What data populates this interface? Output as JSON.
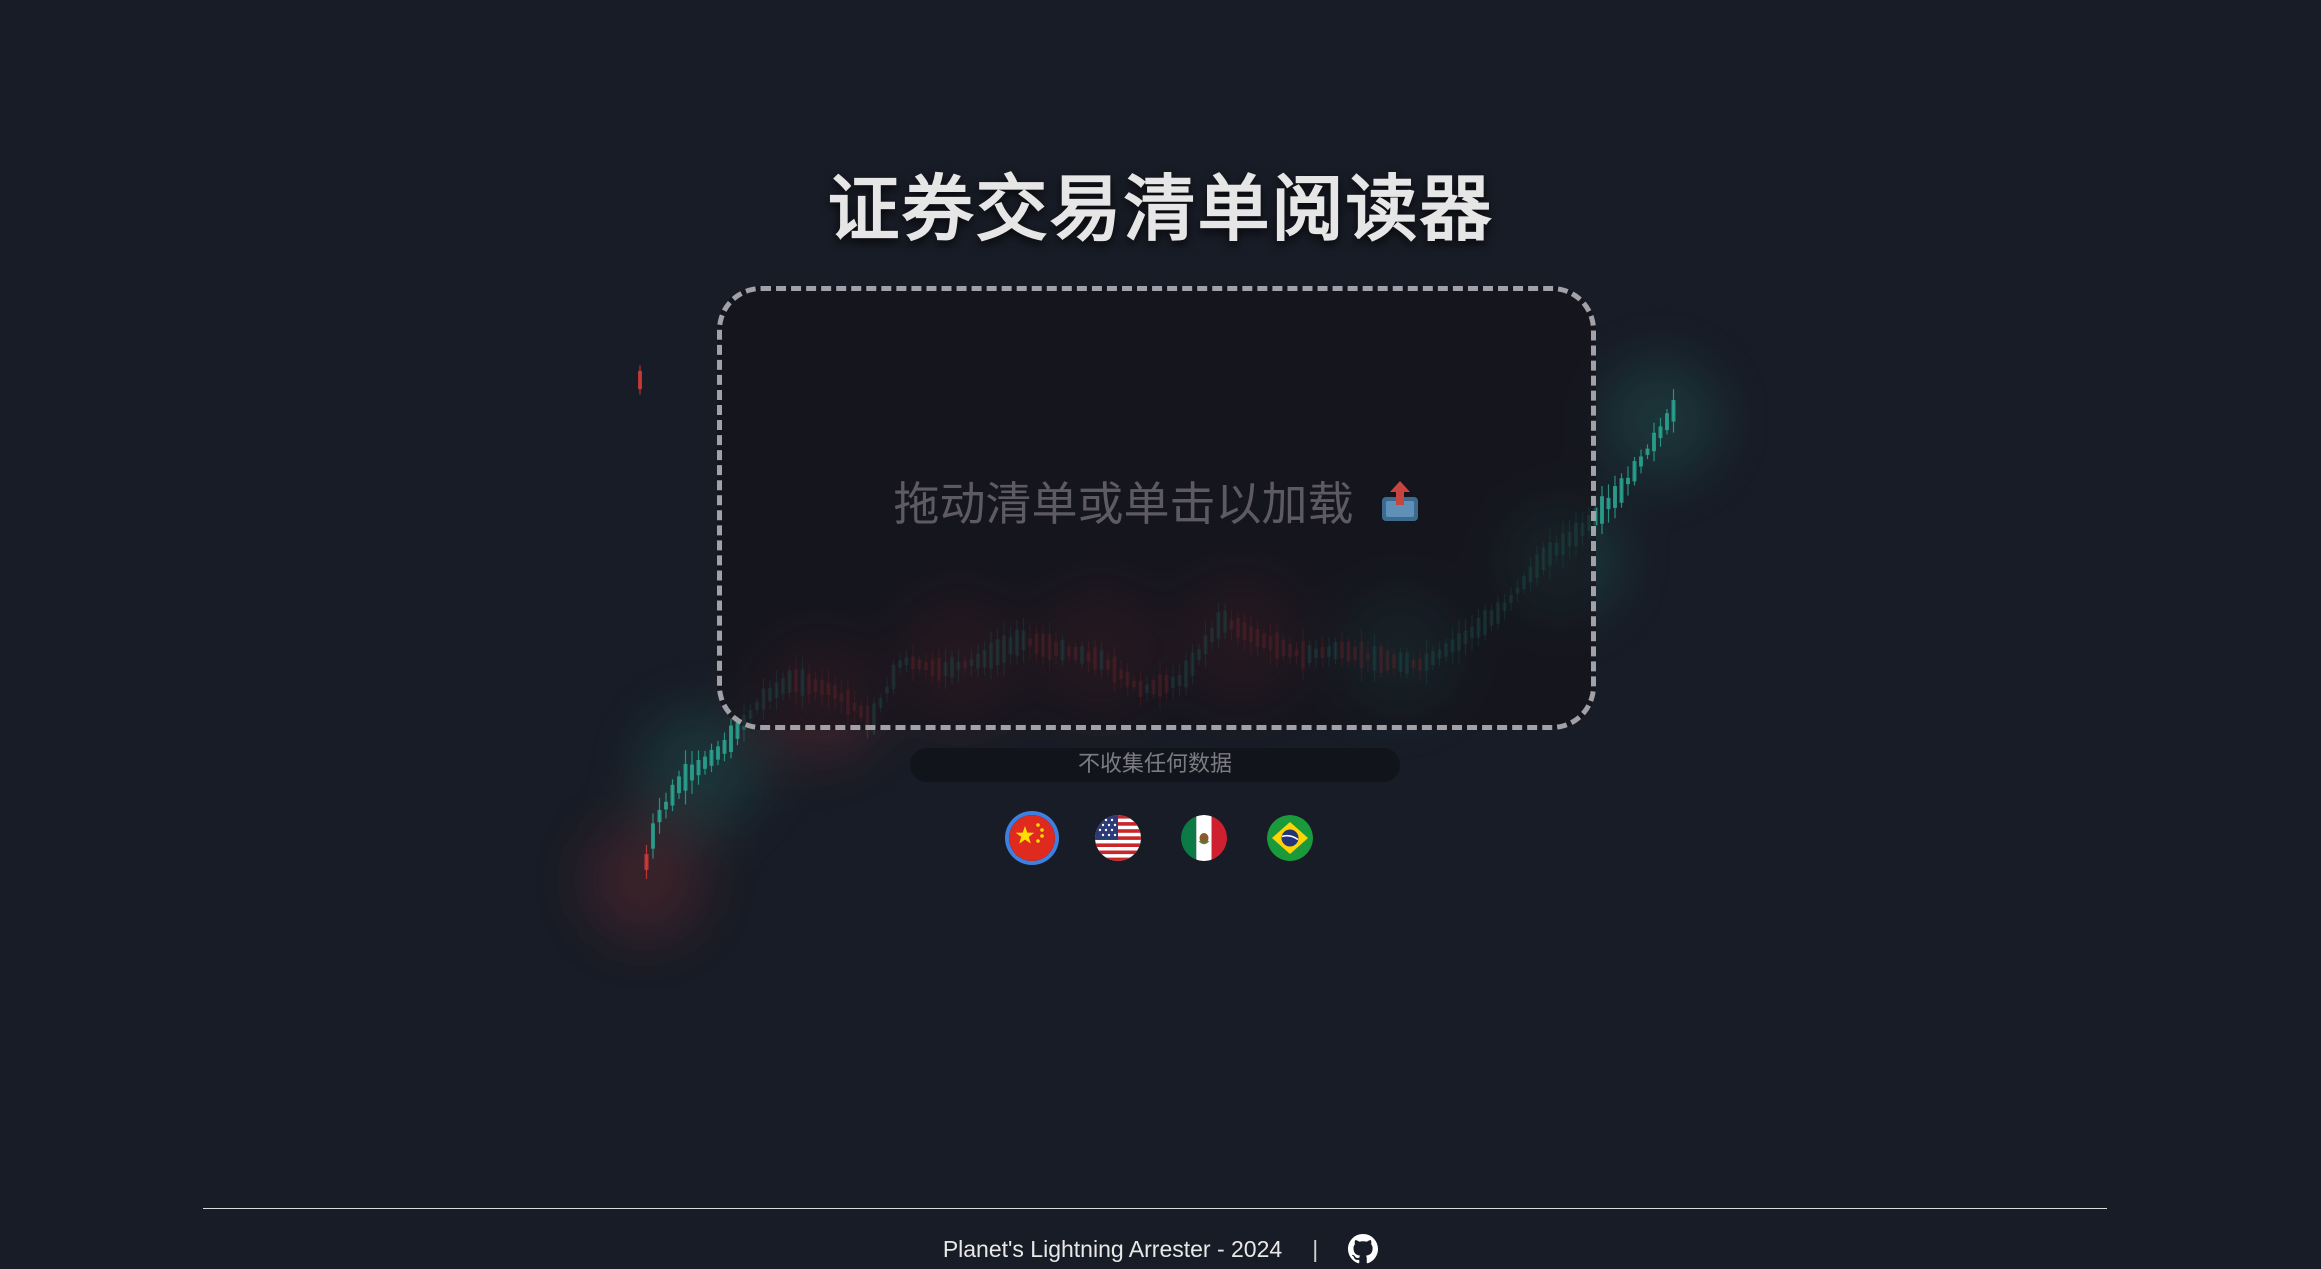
{
  "header": {
    "title": "证券交易清单阅读器"
  },
  "dropzone": {
    "label": "拖动清单或单击以加载",
    "icon": "upload-icon",
    "border_color": "#a3a1a8"
  },
  "privacy": {
    "text": "不收集任何数据"
  },
  "languages": [
    {
      "icon": "china-flag-icon",
      "selected": true
    },
    {
      "icon": "usa-flag-icon",
      "selected": false
    },
    {
      "icon": "mexico-flag-icon",
      "selected": false
    },
    {
      "icon": "brazil-flag-icon",
      "selected": false
    }
  ],
  "footer": {
    "text": "Planet's Lightning Arrester - 2024",
    "separator": "|",
    "icon": "github-icon"
  },
  "colors": {
    "background": "#181c26",
    "up_candle": "#2aa38f",
    "down_candle": "#d23b3b",
    "selected_ring": "#3f7fe0"
  }
}
